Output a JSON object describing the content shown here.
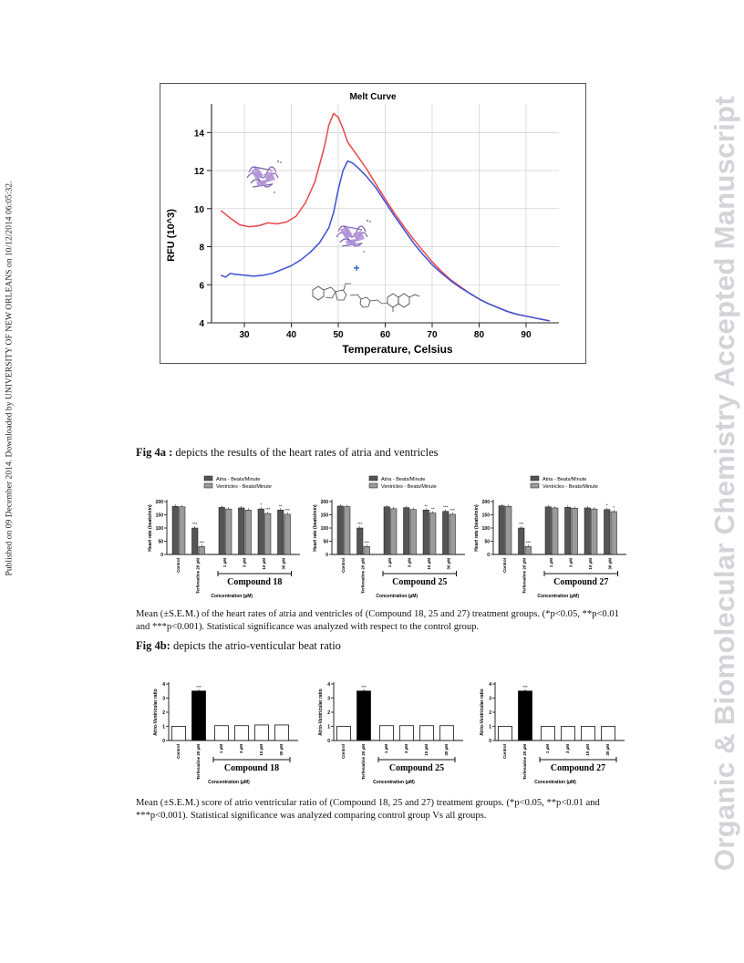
{
  "side_note": "Published on 09 December 2014. Downloaded by UNIVERSITY OF NEW ORLEANS on 10/12/2014 06:05:32.",
  "watermark": "Organic & Biomolecular Chemistry Accepted Manuscript",
  "melt_chart": {
    "title": "Melt Curve",
    "xlabel": "Temperature, Celsius",
    "ylabel": "RFU (10^3)",
    "plus_sign": "+",
    "colors": {
      "red": "#e8474a",
      "blue": "#3b4fd6"
    },
    "chart_data": {
      "type": "line",
      "title": "Melt Curve",
      "xlabel": "Temperature, Celsius",
      "ylabel": "RFU (10^3)",
      "xlim": [
        23,
        97
      ],
      "ylim": [
        4,
        15.5
      ],
      "x_ticks": [
        "30",
        "40",
        "50",
        "60",
        "70",
        "80",
        "90"
      ],
      "y_ticks": [
        "4",
        "6",
        "8",
        "10",
        "12",
        "14"
      ],
      "series": [
        {
          "color": "#e8474a",
          "x": [
            25,
            27,
            29,
            31,
            33,
            35,
            37,
            39,
            41,
            43,
            45,
            47,
            48,
            49,
            50,
            51,
            52,
            54,
            56,
            58,
            60,
            62,
            64,
            66,
            68,
            70,
            72,
            74,
            76,
            78,
            80,
            82,
            84,
            86,
            88,
            90,
            92,
            95
          ],
          "y": [
            9.9,
            9.5,
            9.15,
            9.05,
            9.1,
            9.25,
            9.2,
            9.3,
            9.6,
            10.3,
            11.4,
            13.2,
            14.4,
            15.0,
            14.8,
            14.2,
            13.5,
            12.8,
            12.1,
            11.3,
            10.5,
            9.75,
            9.05,
            8.4,
            7.8,
            7.2,
            6.7,
            6.25,
            5.9,
            5.55,
            5.25,
            5.0,
            4.8,
            4.6,
            4.45,
            4.35,
            4.25,
            4.1
          ]
        },
        {
          "color": "#3b4fd6",
          "x": [
            25,
            26,
            27,
            28,
            30,
            32,
            34,
            36,
            38,
            40,
            42,
            44,
            46,
            48,
            49,
            50,
            51,
            52,
            53,
            54,
            56,
            58,
            60,
            62,
            64,
            66,
            68,
            70,
            72,
            74,
            76,
            78,
            80,
            82,
            84,
            86,
            88,
            90,
            92,
            95
          ],
          "y": [
            6.5,
            6.4,
            6.6,
            6.55,
            6.5,
            6.45,
            6.5,
            6.6,
            6.8,
            7.0,
            7.3,
            7.7,
            8.2,
            9.0,
            9.8,
            11.0,
            12.0,
            12.5,
            12.4,
            12.2,
            11.7,
            11.1,
            10.35,
            9.6,
            8.9,
            8.2,
            7.6,
            7.05,
            6.6,
            6.2,
            5.85,
            5.55,
            5.25,
            5.0,
            4.8,
            4.6,
            4.45,
            4.35,
            4.25,
            4.1
          ]
        }
      ]
    }
  },
  "fig4a": {
    "label": "Fig 4a :",
    "text": " depicts the results of the heart rates of atria and ventricles",
    "legend_atria": "Atria - Beats/Minute",
    "legend_ventricles": "Ventricles - Beats/Minute",
    "ylabel": "Heart rate (beats/min)",
    "y_ticks": [
      "200",
      "150",
      "100",
      "50",
      "0"
    ],
    "xlabel": "Concentration (µM)",
    "categories": [
      "Control",
      "Terfenadine 20 µM",
      "1 µM",
      "3 µM",
      "10 µM",
      "30 µM"
    ],
    "caption": "Mean (±S.E.M.) of the heart rates of atria and ventricles of (Compound 18, 25 and 27) treatment groups. (*p<0.05, **p<0.01 and ***p<0.001). Statistical significance was analyzed with respect to the control group.",
    "colors": {
      "atria": "#555555",
      "ventricles": "#9a9a9a"
    },
    "chart_data": [
      {
        "type": "bar",
        "xlabel": "Concentration (µM)",
        "ylabel": "Heart rate (beats/min)",
        "ylim": [
          0,
          200
        ],
        "bracket_label": "Compound 18",
        "categories": [
          "Control",
          "Terfenadine 20 µM",
          "1 µM",
          "3 µM",
          "10 µM",
          "30 µM"
        ],
        "series": [
          {
            "name": "Atria - Beats/Minute",
            "values": [
              182,
              100,
              178,
              176,
              172,
              168
            ]
          },
          {
            "name": "Ventricles - Beats/Minute",
            "values": [
              180,
              30,
              172,
              168,
              155,
              152
            ]
          }
        ],
        "sig": [
          [
            "",
            ""
          ],
          [
            "***",
            "***"
          ],
          [
            "",
            ""
          ],
          [
            "",
            ""
          ],
          [
            "*",
            "***"
          ],
          [
            "**",
            "***"
          ]
        ]
      },
      {
        "type": "bar",
        "xlabel": "Concentration (µM)",
        "ylabel": "Heart rate (beats/min)",
        "ylim": [
          0,
          200
        ],
        "bracket_label": "Compound 25",
        "categories": [
          "Control",
          "Terfenadine 20 µM",
          "1 µM",
          "3 µM",
          "10 µM",
          "30 µM"
        ],
        "series": [
          {
            "name": "Atria - Beats/Minute",
            "values": [
              183,
              100,
              180,
              177,
              168,
              163
            ]
          },
          {
            "name": "Ventricles - Beats/Minute",
            "values": [
              181,
              30,
              173,
              170,
              157,
              152
            ]
          }
        ],
        "sig": [
          [
            "",
            ""
          ],
          [
            "***",
            "***"
          ],
          [
            "",
            ""
          ],
          [
            "",
            ""
          ],
          [
            "**",
            "**"
          ],
          [
            "***",
            "***"
          ]
        ]
      },
      {
        "type": "bar",
        "xlabel": "Concentration (µM)",
        "ylabel": "Heart rate (beats/min)",
        "ylim": [
          0,
          200
        ],
        "bracket_label": "Compound 27",
        "categories": [
          "Control",
          "Terfenadine 20 µM",
          "1 µM",
          "3 µM",
          "10 µM",
          "30 µM"
        ],
        "series": [
          {
            "name": "Atria - Beats/Minute",
            "values": [
              184,
              100,
              180,
              178,
              176,
              170
            ]
          },
          {
            "name": "Ventricles - Beats/Minute",
            "values": [
              182,
              30,
              176,
              175,
              172,
              162
            ]
          }
        ],
        "sig": [
          [
            "",
            ""
          ],
          [
            "***",
            "***"
          ],
          [
            "",
            ""
          ],
          [
            "",
            ""
          ],
          [
            "",
            ""
          ],
          [
            "*",
            "*"
          ]
        ]
      }
    ]
  },
  "fig4b": {
    "label": "Fig 4b:",
    "text": " depicts the atrio-venticular beat ratio",
    "ylabel": "Atrio-Ventricular ratio",
    "y_ticks": [
      "4",
      "3",
      "2",
      "1",
      "0"
    ],
    "xlabel": "Concentration (µM)",
    "categories": [
      "Control",
      "Terfenadine 20 µM",
      "1 µM",
      "3 µM",
      "10 µM",
      "30 µM"
    ],
    "caption": "Mean (±S.E.M.) score of atrio ventricular ratio of (Compound 18, 25 and 27) treatment groups. (*p<0.05, **p<0.01 and ***p<0.001). Statistical significance was analyzed comparing control group Vs all groups.",
    "chart_data": [
      {
        "type": "bar",
        "xlabel": "Concentration (µM)",
        "ylabel": "Atrio-Ventricular ratio",
        "ylim": [
          0,
          4
        ],
        "bracket_label": "Compound 18",
        "categories": [
          "Control",
          "Terfenadine 20 µM",
          "1 µM",
          "3 µM",
          "10 µM",
          "30 µM"
        ],
        "values": [
          1.0,
          3.5,
          1.05,
          1.05,
          1.1,
          1.1
        ],
        "sig": [
          "",
          "***",
          "",
          "",
          "",
          ""
        ]
      },
      {
        "type": "bar",
        "xlabel": "Concentration (µM)",
        "ylabel": "Atrio-Ventricular ratio",
        "ylim": [
          0,
          4
        ],
        "bracket_label": "Compound 25",
        "categories": [
          "Control",
          "Terfenadine 20 µM",
          "1 µM",
          "3 µM",
          "10 µM",
          "30 µM"
        ],
        "values": [
          1.0,
          3.5,
          1.05,
          1.05,
          1.05,
          1.05
        ],
        "sig": [
          "",
          "***",
          "",
          "",
          "",
          ""
        ]
      },
      {
        "type": "bar",
        "xlabel": "Concentration (µM)",
        "ylabel": "Atrio-Ventricular ratio",
        "ylim": [
          0,
          4
        ],
        "bracket_label": "Compound 27",
        "categories": [
          "Control",
          "Terfenadine 20 µM",
          "1 µM",
          "3 µM",
          "10 µM",
          "30 µM"
        ],
        "values": [
          1.0,
          3.5,
          1.0,
          1.0,
          1.0,
          1.0
        ],
        "sig": [
          "",
          "***",
          "",
          "",
          "",
          ""
        ]
      }
    ]
  }
}
